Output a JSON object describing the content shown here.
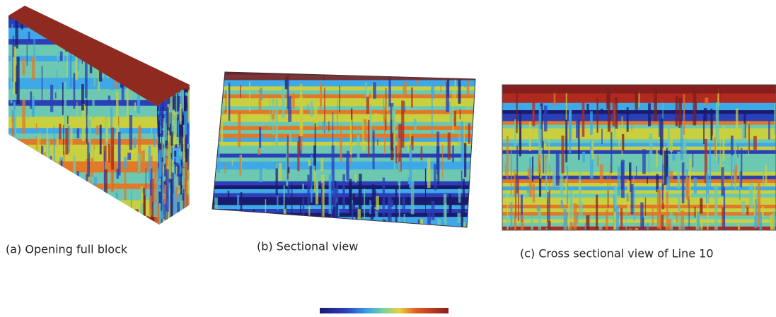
{
  "captions": {
    "a": "(a) Opening full block",
    "b": "(b) Sectional view",
    "c": "(c) Cross sectional view of Line 10"
  }
}
